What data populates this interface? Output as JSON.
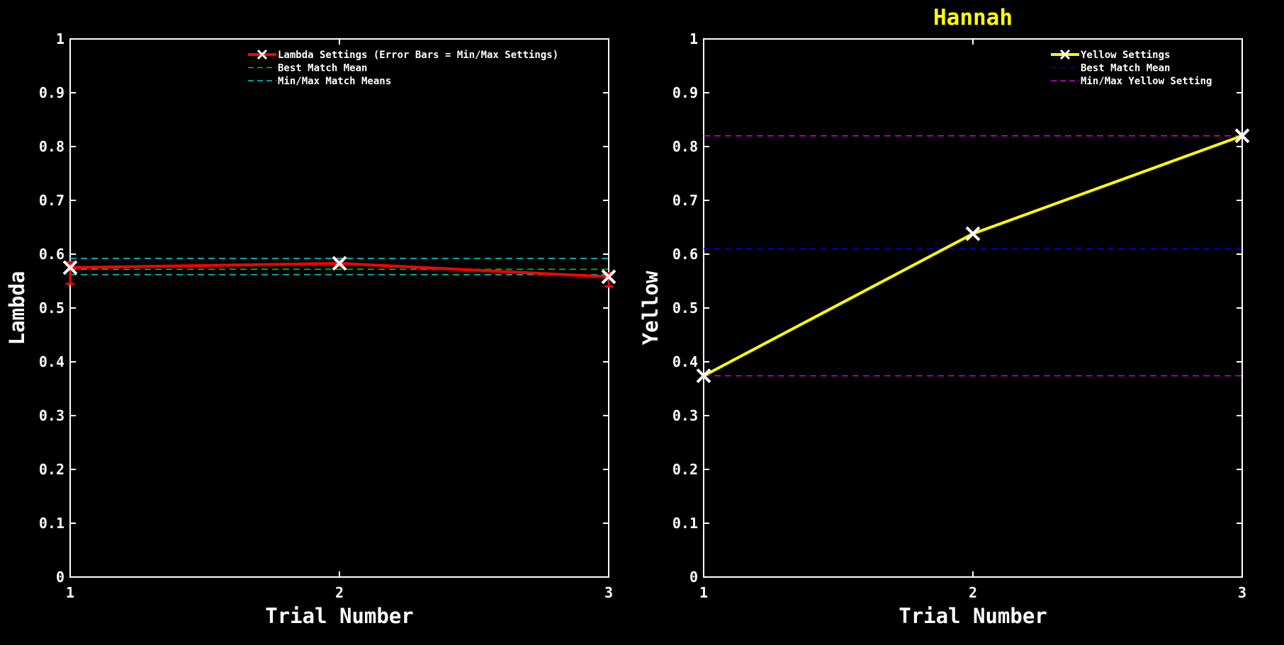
{
  "title": "Hannah",
  "chart_data": [
    {
      "type": "line",
      "title": "",
      "xlabel": "Trial Number",
      "ylabel": "Lambda",
      "x": [
        1,
        2,
        3
      ],
      "xlim": [
        1,
        3
      ],
      "ylim": [
        0,
        1
      ],
      "xticks": [
        "1",
        "2",
        "3"
      ],
      "yticks": [
        "0",
        "0.1",
        "0.2",
        "0.3",
        "0.4",
        "0.5",
        "0.6",
        "0.7",
        "0.8",
        "0.9",
        "1"
      ],
      "grid": false,
      "legend_position": "top-right",
      "series": [
        {
          "name": "Lambda Settings (Error Bars = Min/Max Settings)",
          "values": [
            0.575,
            0.583,
            0.558
          ],
          "err_low": [
            0.545,
            0.578,
            0.54
          ],
          "err_high": [
            0.585,
            0.588,
            0.565
          ],
          "color": "#ff0000",
          "marker": "x"
        },
        {
          "name": "Best Match Mean",
          "hline": 0.572,
          "color": "#00cc00",
          "style": "dashed"
        },
        {
          "name": "Min/Max Match Means",
          "hline": [
            0.562,
            0.592
          ],
          "color": "#00cccc",
          "style": "dashed"
        }
      ]
    },
    {
      "type": "line",
      "title": "Hannah",
      "xlabel": "Trial Number",
      "ylabel": "Yellow",
      "x": [
        1,
        2,
        3
      ],
      "xlim": [
        1,
        3
      ],
      "ylim": [
        0,
        1
      ],
      "xticks": [
        "1",
        "2",
        "3"
      ],
      "yticks": [
        "0",
        "0.1",
        "0.2",
        "0.3",
        "0.4",
        "0.5",
        "0.6",
        "0.7",
        "0.8",
        "0.9",
        "1"
      ],
      "grid": false,
      "legend_position": "top-right",
      "series": [
        {
          "name": "Yellow Settings",
          "values": [
            0.374,
            0.638,
            0.82
          ],
          "color": "#ffff00",
          "marker": "x"
        },
        {
          "name": "Best Match Mean",
          "hline": 0.61,
          "color": "#0000dd",
          "style": "dashed"
        },
        {
          "name": "Min/Max Yellow Setting",
          "hline": [
            0.374,
            0.82
          ],
          "color": "#cc00cc",
          "style": "dashed"
        }
      ]
    }
  ],
  "colors": {
    "background": "#000000",
    "axes": "#ffffff",
    "title": "#ffff00"
  }
}
